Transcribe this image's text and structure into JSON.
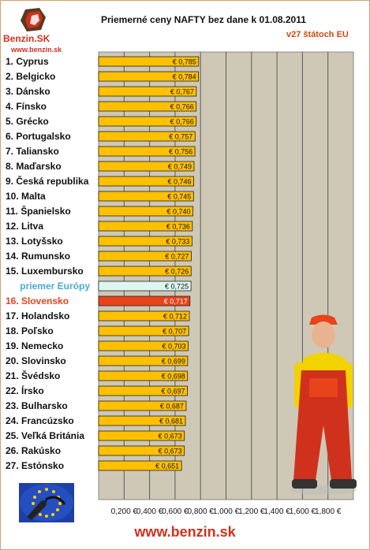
{
  "header": {
    "title": "Priemerné ceny NAFTY bez dane k 01.08.2011",
    "subtitle": "v27 štátoch EU",
    "logo_text": "Benzin.SK",
    "logo_url": "www.benzin.sk"
  },
  "footer": {
    "url": "www.benzin.sk"
  },
  "colors": {
    "bar": "#ffc000",
    "average_bar": "#ddf6f0",
    "highlight_bar": "#e8431b",
    "plot_bg": "#cfc8b6",
    "average_label": "#4aa8d8",
    "highlight_label": "#e8431b"
  },
  "chart_data": {
    "type": "bar",
    "orientation": "horizontal",
    "categories": [
      "1. Cyprus",
      "2. Belgicko",
      "3. Dánsko",
      "4. Fínsko",
      "5. Grécko",
      "6. Portugalsko",
      "7. Taliansko",
      "8. Maďarsko",
      "9. Česká republika",
      "10. Malta",
      "11. Španielsko",
      "12. Litva",
      "13. Lotyšsko",
      "14. Rumunsko",
      "15. Luxembursko",
      "priemer Európy",
      "16. Slovensko",
      "17. Holandsko",
      "18. Poľsko",
      "19. Nemecko",
      "20. Slovinsko",
      "21. Švédsko",
      "22. Írsko",
      "23. Bulharsko",
      "24. Francúzsko",
      "25. Veľká Británia",
      "26. Rakúsko",
      "27. Estónsko"
    ],
    "values": [
      0.785,
      0.784,
      0.767,
      0.766,
      0.766,
      0.757,
      0.756,
      0.749,
      0.746,
      0.745,
      0.74,
      0.736,
      0.733,
      0.727,
      0.726,
      0.725,
      0.717,
      0.712,
      0.707,
      0.703,
      0.699,
      0.698,
      0.697,
      0.687,
      0.681,
      0.673,
      0.673,
      0.651
    ],
    "value_labels": [
      "€ 0,785",
      "€ 0,784",
      "€ 0,767",
      "€ 0,766",
      "€ 0,766",
      "€ 0,757",
      "€ 0,756",
      "€ 0,749",
      "€ 0,746",
      "€ 0,745",
      "€ 0,740",
      "€ 0,736",
      "€ 0,733",
      "€ 0,727",
      "€ 0,726",
      "€ 0,725",
      "€ 0,717",
      "€ 0,712",
      "€ 0,707",
      "€ 0,703",
      "€ 0,699",
      "€ 0,698",
      "€ 0,697",
      "€ 0,687",
      "€ 0,681",
      "€ 0,673",
      "€ 0,673",
      "€ 0,651"
    ],
    "average_index": 15,
    "highlight_index": 16,
    "xlim": [
      0,
      2.0
    ],
    "x_ticks": [
      0.2,
      0.4,
      0.6,
      0.8,
      1.0,
      1.2,
      1.4,
      1.6,
      1.8
    ],
    "x_tick_labels": [
      "0,200 €",
      "0,400 €",
      "0,600 €",
      "0,800 €",
      "1,000 €",
      "1,200 €",
      "1,400 €",
      "1,600 €",
      "1,800 €"
    ],
    "grid": true
  }
}
